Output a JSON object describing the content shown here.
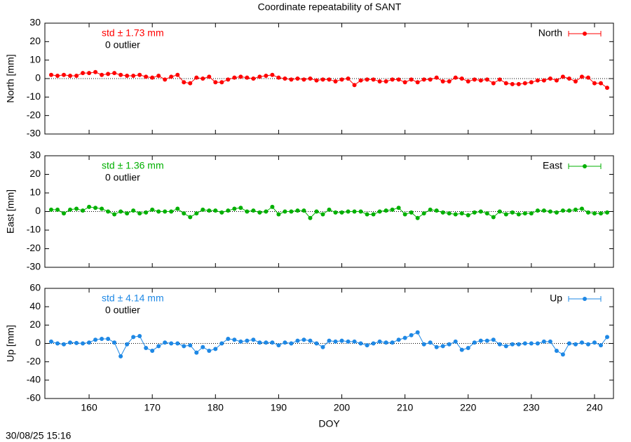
{
  "timestamp": "30/08/25 15:16",
  "chart_data": [
    {
      "type": "line",
      "title": "Coordinate repeatability of SANT",
      "ylabel": "North [mm]",
      "annotation": "std ± 1.73 mm",
      "outlier_label": "0 outlier",
      "x": [
        154,
        155,
        156,
        157,
        158,
        159,
        160,
        161,
        162,
        163,
        164,
        165,
        166,
        167,
        168,
        169,
        170,
        171,
        172,
        173,
        174,
        175,
        176,
        177,
        178,
        179,
        180,
        181,
        182,
        183,
        184,
        185,
        186,
        187,
        188,
        189,
        190,
        191,
        192,
        193,
        194,
        195,
        196,
        197,
        198,
        199,
        200,
        201,
        202,
        203,
        204,
        205,
        206,
        207,
        208,
        209,
        210,
        211,
        212,
        213,
        214,
        215,
        216,
        217,
        218,
        219,
        220,
        221,
        222,
        223,
        224,
        225,
        226,
        227,
        228,
        229,
        230,
        231,
        232,
        233,
        234,
        235,
        236,
        237,
        238,
        239,
        240,
        241,
        242
      ],
      "series": [
        {
          "name": "North",
          "color": "#ff0000",
          "values": [
            2,
            1.5,
            2,
            1.5,
            1.5,
            3,
            3,
            3.5,
            2,
            2.5,
            3,
            2,
            1.5,
            1.5,
            2,
            1,
            0.5,
            1.5,
            -0.5,
            1,
            2,
            -2,
            -2.5,
            0.5,
            0,
            1,
            -2,
            -2,
            -0.5,
            0.5,
            1,
            0.5,
            0,
            1,
            1.5,
            2,
            0.5,
            0,
            -0.5,
            0,
            -0.5,
            0,
            -1,
            -0.5,
            -0.5,
            -1.5,
            -0.5,
            0,
            -3.5,
            -1,
            -0.5,
            -0.5,
            -1.5,
            -1.5,
            -0.5,
            -0.5,
            -2,
            -0.5,
            -2,
            -0.5,
            -0.5,
            0.5,
            -1.5,
            -1.5,
            0.5,
            0,
            -1.5,
            -0.5,
            -1,
            -0.5,
            -2.5,
            -0.5,
            -2.5,
            -3,
            -3,
            -2.5,
            -2,
            -1,
            -1,
            0,
            -1,
            1,
            0,
            -1.5,
            1,
            0.5,
            -2.5,
            -2.5,
            -5
          ]
        }
      ],
      "xlim": [
        153,
        243
      ],
      "xticks": [
        160,
        170,
        180,
        190,
        200,
        210,
        220,
        230,
        240
      ],
      "ylim": [
        -30,
        30
      ],
      "yticks": [
        -30,
        -20,
        -10,
        0,
        10,
        20,
        30
      ]
    },
    {
      "type": "line",
      "ylabel": "East [mm]",
      "annotation": "std ± 1.36 mm",
      "outlier_label": "0 outlier",
      "x": [
        154,
        155,
        156,
        157,
        158,
        159,
        160,
        161,
        162,
        163,
        164,
        165,
        166,
        167,
        168,
        169,
        170,
        171,
        172,
        173,
        174,
        175,
        176,
        177,
        178,
        179,
        180,
        181,
        182,
        183,
        184,
        185,
        186,
        187,
        188,
        189,
        190,
        191,
        192,
        193,
        194,
        195,
        196,
        197,
        198,
        199,
        200,
        201,
        202,
        203,
        204,
        205,
        206,
        207,
        208,
        209,
        210,
        211,
        212,
        213,
        214,
        215,
        216,
        217,
        218,
        219,
        220,
        221,
        222,
        223,
        224,
        225,
        226,
        227,
        228,
        229,
        230,
        231,
        232,
        233,
        234,
        235,
        236,
        237,
        238,
        239,
        240,
        241,
        242
      ],
      "series": [
        {
          "name": "East",
          "color": "#00b000",
          "values": [
            1,
            1,
            -1,
            1,
            1.5,
            0.5,
            2.5,
            2,
            1.5,
            0,
            -1.5,
            0,
            -1,
            0.5,
            -1,
            -0.5,
            1,
            0,
            0,
            0,
            1.5,
            -1,
            -3,
            -1,
            1,
            0.5,
            0.5,
            -0.5,
            0.5,
            1.5,
            2,
            0,
            0.5,
            -0.5,
            0,
            2.5,
            -1.5,
            0,
            0,
            0.5,
            0.5,
            -3.5,
            0,
            -1.5,
            1,
            -0.5,
            -0.5,
            0,
            0,
            0,
            -1.5,
            -1.5,
            0,
            0.5,
            1,
            2,
            -1.5,
            -0.5,
            -3.5,
            -1,
            1,
            0.5,
            -0.5,
            -1,
            -1.5,
            -1,
            -2,
            -0.5,
            0,
            -1,
            -3,
            0,
            -1.5,
            -0.5,
            -1.5,
            -1,
            -1,
            0.5,
            0.5,
            0,
            -0.5,
            0.5,
            0.5,
            1,
            1.5,
            -0.5,
            -1,
            -1,
            -0.5
          ]
        }
      ],
      "xlim": [
        153,
        243
      ],
      "xticks": [
        160,
        170,
        180,
        190,
        200,
        210,
        220,
        230,
        240
      ],
      "ylim": [
        -30,
        30
      ],
      "yticks": [
        -30,
        -20,
        -10,
        0,
        10,
        20,
        30
      ]
    },
    {
      "type": "line",
      "ylabel": "Up [mm]",
      "xlabel": "DOY",
      "annotation": "std ± 4.14 mm",
      "outlier_label": "0 outlier",
      "x": [
        154,
        155,
        156,
        157,
        158,
        159,
        160,
        161,
        162,
        163,
        164,
        165,
        166,
        167,
        168,
        169,
        170,
        171,
        172,
        173,
        174,
        175,
        176,
        177,
        178,
        179,
        180,
        181,
        182,
        183,
        184,
        185,
        186,
        187,
        188,
        189,
        190,
        191,
        192,
        193,
        194,
        195,
        196,
        197,
        198,
        199,
        200,
        201,
        202,
        203,
        204,
        205,
        206,
        207,
        208,
        209,
        210,
        211,
        212,
        213,
        214,
        215,
        216,
        217,
        218,
        219,
        220,
        221,
        222,
        223,
        224,
        225,
        226,
        227,
        228,
        229,
        230,
        231,
        232,
        233,
        234,
        235,
        236,
        237,
        238,
        239,
        240,
        241,
        242
      ],
      "series": [
        {
          "name": "Up",
          "color": "#1e88e5",
          "values": [
            2,
            0,
            -1,
            1,
            0.5,
            0,
            1,
            4,
            5,
            5,
            1,
            -14,
            -1,
            7,
            8,
            -5,
            -8,
            -3,
            1,
            0,
            0,
            -3,
            -2,
            -10,
            -4,
            -8,
            -6,
            0,
            5,
            4,
            2,
            3,
            4,
            1,
            1,
            1,
            -2,
            1,
            0,
            3,
            4,
            3,
            0,
            -4,
            3,
            2,
            3,
            2,
            2,
            0,
            -2,
            0,
            2,
            1,
            1,
            4,
            6,
            9,
            12,
            -1,
            1,
            -4,
            -3,
            -1,
            2,
            -7,
            -5,
            1,
            3,
            3,
            4,
            -1,
            -3,
            -1,
            -1,
            0,
            0,
            0,
            2,
            2,
            -8,
            -12,
            0,
            -1,
            1,
            -1,
            1,
            -2,
            7
          ]
        }
      ],
      "xlim": [
        153,
        243
      ],
      "xticks": [
        160,
        170,
        180,
        190,
        200,
        210,
        220,
        230,
        240
      ],
      "ylim": [
        -60,
        60
      ],
      "yticks": [
        -60,
        -40,
        -20,
        0,
        20,
        40,
        60
      ]
    }
  ]
}
